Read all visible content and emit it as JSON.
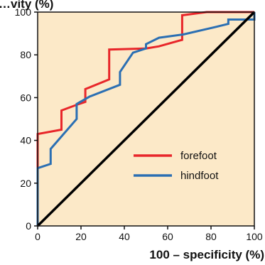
{
  "chart_data": {
    "type": "line",
    "title": "",
    "ylabel_partial": "…vity (%)",
    "xlabel": "100 – specificity (%)",
    "xlim": [
      0,
      100
    ],
    "ylim": [
      0,
      100
    ],
    "xticks": [
      0,
      20,
      40,
      60,
      80,
      100
    ],
    "yticks": [
      0,
      20,
      40,
      60,
      80,
      100
    ],
    "grid": false,
    "legend_position": "lower-right",
    "background_color": "#fce9c8",
    "series": [
      {
        "name": "forefoot",
        "color": "#e8262a",
        "points": [
          [
            0,
            0
          ],
          [
            0,
            43
          ],
          [
            11,
            45
          ],
          [
            11,
            54
          ],
          [
            19,
            57
          ],
          [
            22,
            58
          ],
          [
            22,
            64
          ],
          [
            33,
            68.5
          ],
          [
            33,
            82.5
          ],
          [
            50,
            83
          ],
          [
            56,
            84
          ],
          [
            66.7,
            87
          ],
          [
            66.7,
            98.5
          ],
          [
            78,
            100
          ],
          [
            100,
            100
          ]
        ]
      },
      {
        "name": "hindfoot",
        "color": "#2b6fb3",
        "points": [
          [
            0,
            0
          ],
          [
            0,
            27
          ],
          [
            6,
            29
          ],
          [
            6,
            36
          ],
          [
            18,
            50
          ],
          [
            18,
            57
          ],
          [
            24,
            60.5
          ],
          [
            38,
            66
          ],
          [
            38,
            72
          ],
          [
            44,
            81
          ],
          [
            50,
            83
          ],
          [
            50,
            85
          ],
          [
            56,
            88
          ],
          [
            67,
            89.5
          ],
          [
            82,
            93
          ],
          [
            88,
            94.5
          ],
          [
            88,
            96.5
          ],
          [
            100,
            96.5
          ],
          [
            100,
            100
          ]
        ]
      },
      {
        "name": "",
        "color": "#000000",
        "points": [
          [
            0,
            0
          ],
          [
            100,
            100
          ]
        ]
      }
    ]
  }
}
